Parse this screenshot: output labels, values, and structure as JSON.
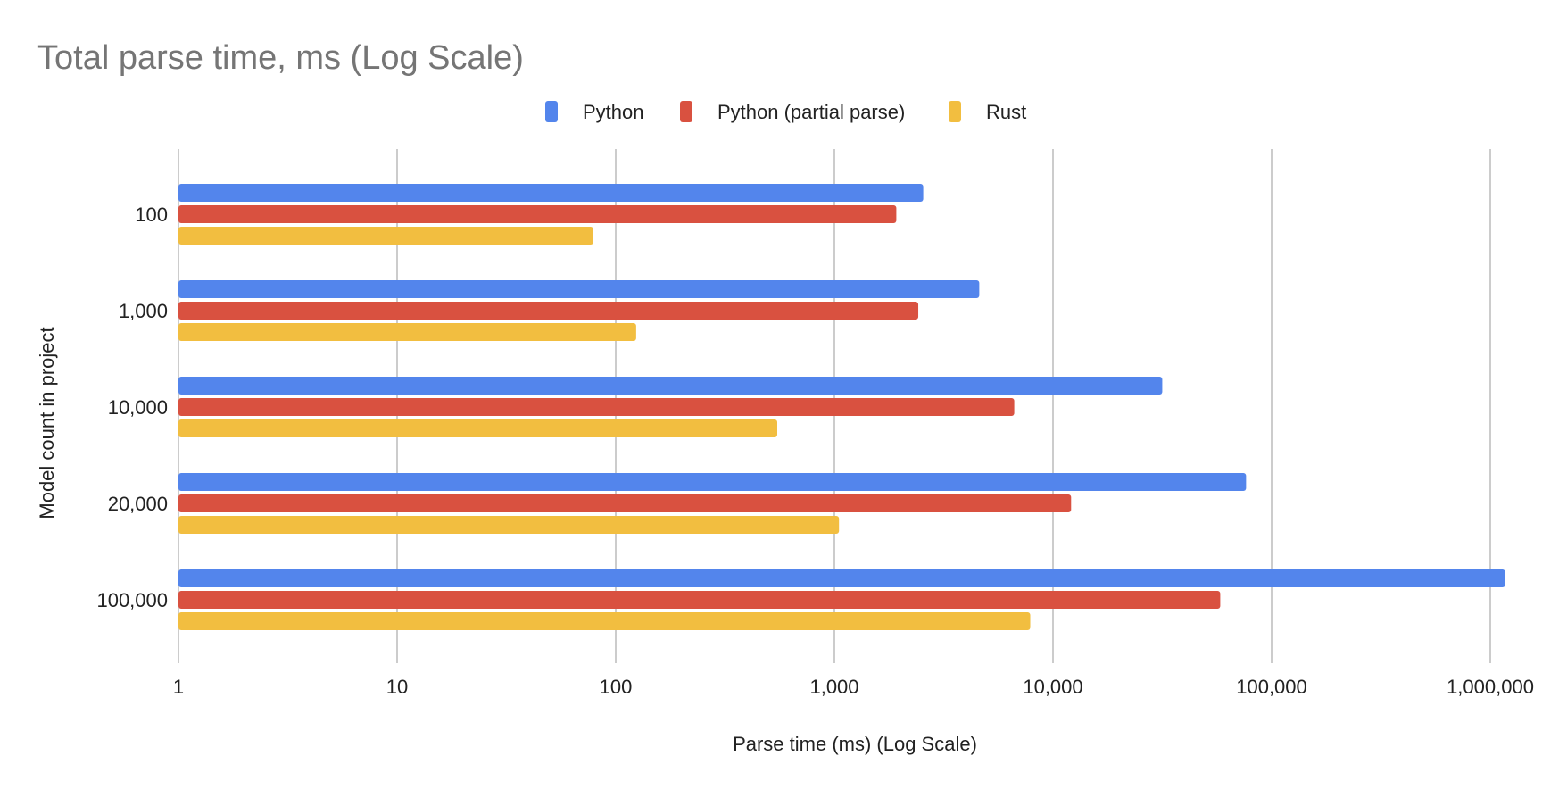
{
  "chart_data": {
    "type": "bar",
    "orientation": "horizontal",
    "title": "Total parse time, ms (Log Scale)",
    "xlabel": "Parse time (ms) (Log Scale)",
    "ylabel": "Model count in project",
    "x_scale": "log",
    "xlim": [
      1,
      1000000
    ],
    "x_ticks": [
      "1",
      "10",
      "100",
      "1,000",
      "10,000",
      "100,000",
      "1,000,000"
    ],
    "grid": true,
    "legend_position": "top",
    "categories": [
      "100",
      "1,000",
      "10,000",
      "20,000",
      "100,000"
    ],
    "series": [
      {
        "name": "Python",
        "color": "#5385EC",
        "values": [
          2550,
          4600,
          31600,
          76400,
          1170000
        ]
      },
      {
        "name": "Python (partial parse)",
        "color": "#D95140",
        "values": [
          1920,
          2420,
          6650,
          12100,
          58200
        ]
      },
      {
        "name": "Rust",
        "color": "#F2BE40",
        "values": [
          79,
          124,
          548,
          1050,
          7870
        ]
      }
    ]
  }
}
